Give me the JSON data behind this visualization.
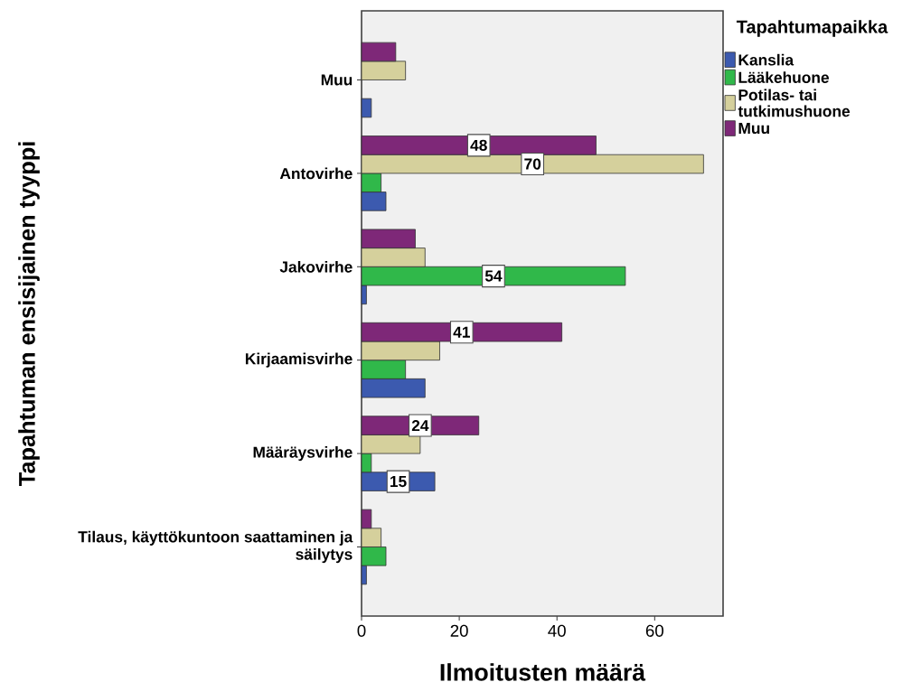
{
  "chart_data": {
    "type": "bar",
    "orientation": "horizontal",
    "xlabel": "Ilmoitusten määrä",
    "ylabel": "Tapahtuman ensisijainen tyyppi",
    "legend_title": "Tapahtumapaikka",
    "legend": "right",
    "categories": [
      "Muu",
      "Antovirhe",
      "Jakovirhe",
      "Kirjaamisvirhe",
      "Määräysvirhe",
      "Tilaus, käyttökuntoon saattaminen ja säilytys"
    ],
    "xlim": [
      0,
      74
    ],
    "xticks": [
      0,
      20,
      40,
      60
    ],
    "grid": false,
    "series": [
      {
        "name": "Kanslia",
        "color": "#3c5aaf",
        "values": [
          2,
          5,
          1,
          13,
          15,
          1
        ],
        "value_labels": [
          null,
          null,
          null,
          null,
          "15",
          null
        ]
      },
      {
        "name": "Lääkehuone",
        "color": "#30b84a",
        "values": [
          null,
          4,
          54,
          9,
          2,
          5
        ],
        "value_labels": [
          null,
          null,
          "54",
          null,
          null,
          null
        ]
      },
      {
        "name": "Potilas- tai tutkimushuone",
        "color": "#d5d09c",
        "values": [
          9,
          70,
          13,
          16,
          12,
          4
        ],
        "value_labels": [
          null,
          "70",
          null,
          null,
          null,
          null
        ]
      },
      {
        "name": "Muu",
        "color": "#7e2878",
        "values": [
          7,
          48,
          11,
          41,
          24,
          2
        ],
        "value_labels": [
          null,
          "48",
          null,
          "41",
          "24",
          null
        ]
      }
    ]
  }
}
